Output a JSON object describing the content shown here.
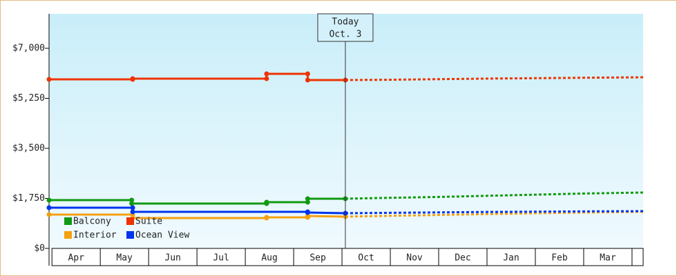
{
  "chart_data": {
    "type": "line",
    "xlim": [
      -0.06,
      12.23
    ],
    "xticks": [
      {
        "value": 0.5,
        "label": "Apr"
      },
      {
        "value": 1.5,
        "label": "May"
      },
      {
        "value": 2.5,
        "label": "Jun"
      },
      {
        "value": 3.5,
        "label": "Jul"
      },
      {
        "value": 4.5,
        "label": "Aug"
      },
      {
        "value": 5.5,
        "label": "Sep"
      },
      {
        "value": 6.5,
        "label": "Oct"
      },
      {
        "value": 7.5,
        "label": "Nov"
      },
      {
        "value": 8.5,
        "label": "Dec"
      },
      {
        "value": 9.5,
        "label": "Jan"
      },
      {
        "value": 10.5,
        "label": "Feb"
      },
      {
        "value": 11.5,
        "label": "Mar"
      }
    ],
    "ylim": [
      0,
      8207
    ],
    "yticks": [
      {
        "value": 0,
        "label": "$0"
      },
      {
        "value": 1750,
        "label": "$1,750"
      },
      {
        "value": 3500,
        "label": "$3,500"
      },
      {
        "value": 5250,
        "label": "$5,250"
      },
      {
        "value": 7000,
        "label": "$7,000"
      }
    ],
    "today": {
      "x": 6.07,
      "label": "Today",
      "date": "Oct. 3"
    },
    "series": [
      {
        "name": "Balcony",
        "color": "#119911",
        "x": [
          -0.06,
          1.65,
          1.65,
          4.44,
          4.44,
          5.29,
          5.29,
          6.07
        ],
        "values": [
          1690,
          1690,
          1569,
          1569,
          1617,
          1617,
          1738,
          1738
        ],
        "forecast_x": [
          6.07,
          7.0,
          8.0,
          9.0,
          10.0,
          11.0,
          12.23
        ],
        "forecast_values": [
          1738,
          1770,
          1800,
          1840,
          1880,
          1920,
          1955
        ]
      },
      {
        "name": "Suite",
        "color": "#ee3300",
        "x": [
          -0.06,
          1.67,
          1.67,
          4.44,
          4.44,
          5.29,
          5.29,
          6.07
        ],
        "values": [
          5914,
          5914,
          5938,
          5938,
          6107,
          6107,
          5890,
          5890
        ],
        "forecast_x": [
          6.07,
          7.0,
          8.0,
          9.0,
          10.0,
          11.0,
          12.23
        ],
        "forecast_values": [
          5890,
          5900,
          5920,
          5940,
          5955,
          5970,
          5986
        ]
      },
      {
        "name": "Interior",
        "color": "#f5a010",
        "x": [
          -0.06,
          1.67,
          1.67,
          4.44,
          4.44,
          5.29,
          5.29,
          6.07
        ],
        "values": [
          1183,
          1183,
          1062,
          1062,
          1086,
          1086,
          1134,
          1110
        ],
        "forecast_x": [
          6.07,
          7.0,
          8.0,
          9.0,
          10.0,
          11.0,
          12.23
        ],
        "forecast_values": [
          1110,
          1140,
          1170,
          1200,
          1230,
          1255,
          1280
        ]
      },
      {
        "name": "Ocean View",
        "color": "#0033ee",
        "x": [
          -0.06,
          1.67,
          1.67,
          5.29,
          5.29,
          6.07
        ],
        "values": [
          1424,
          1424,
          1279,
          1279,
          1255,
          1231
        ],
        "forecast_x": [
          6.07,
          7.0,
          8.0,
          9.0,
          10.0,
          11.0,
          12.23
        ],
        "forecast_values": [
          1231,
          1245,
          1260,
          1275,
          1285,
          1295,
          1303
        ]
      }
    ]
  }
}
